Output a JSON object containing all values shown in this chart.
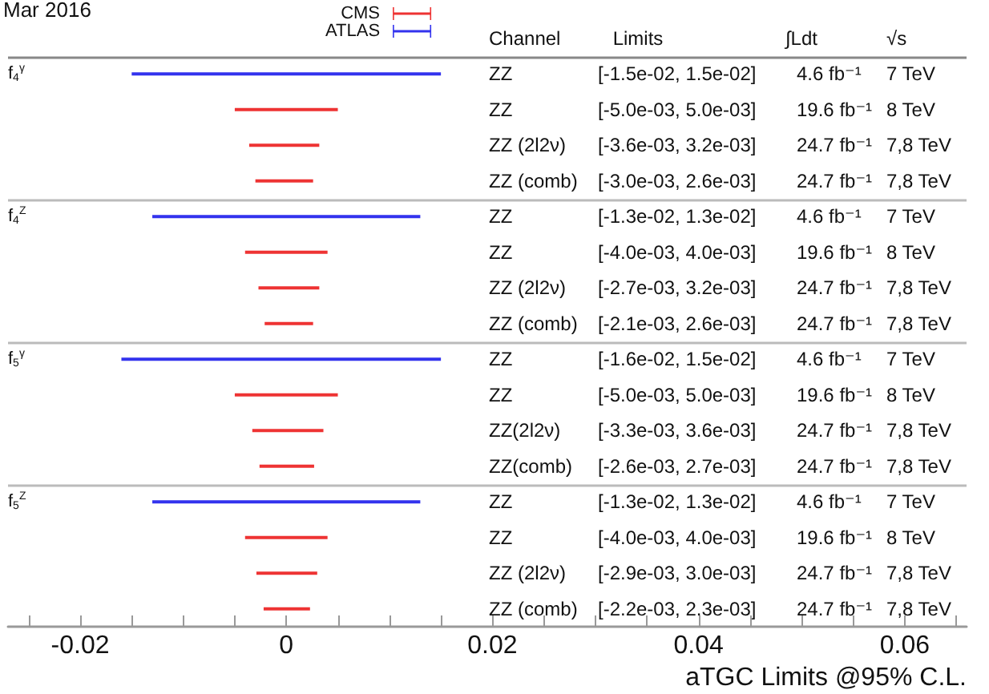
{
  "chart_data": {
    "type": "bar",
    "orientation": "horizontal",
    "categories": [
      "f$_{4}$$^{γ}$",
      null,
      null,
      null,
      "f$_{4}$$^{Z}$",
      null,
      null,
      null,
      "f$_{5}$$^{γ}$",
      null,
      null,
      null,
      "f$_{5}$$^{Z}$",
      null,
      null,
      null
    ],
    "series": [
      {
        "name": "CMS",
        "color": "#ee3333",
        "base": [
          null,
          -0.005,
          -0.0036,
          -0.003,
          null,
          -0.004,
          -0.0027,
          -0.0021,
          null,
          -0.005,
          -0.0033,
          -0.0026,
          null,
          -0.004,
          -0.0029,
          -0.0022
        ],
        "values": [
          null,
          0.01,
          0.0068,
          0.0056,
          null,
          0.008,
          0.0059,
          0.0047,
          null,
          0.01,
          0.0069,
          0.0053,
          null,
          0.008,
          0.0059,
          0.0045
        ]
      },
      {
        "name": "ATLAS",
        "color": "#3333ee",
        "base": [
          -0.015,
          null,
          null,
          null,
          -0.013,
          null,
          null,
          null,
          -0.016,
          null,
          null,
          null,
          -0.013,
          null,
          null,
          null
        ],
        "values": [
          0.03,
          null,
          null,
          null,
          0.026,
          null,
          null,
          null,
          0.031,
          null,
          null,
          null,
          0.026,
          null,
          null,
          null
        ]
      }
    ],
    "xlim": [
      -0.027,
      0.066
    ],
    "xticks": [
      {
        "value": -0.025,
        "label": null
      },
      -0.02,
      {
        "value": -0.015,
        "label": null
      },
      {
        "value": -0.01,
        "label": null
      },
      {
        "value": -0.005,
        "label": null
      },
      0,
      {
        "value": 0.005,
        "label": null
      },
      {
        "value": 0.01,
        "label": null
      },
      {
        "value": 0.015,
        "label": null
      },
      0.02,
      {
        "value": 0.025,
        "label": null
      },
      {
        "value": 0.03,
        "label": null
      },
      {
        "value": 0.035,
        "label": null
      },
      0.04,
      {
        "value": 0.045,
        "label": null
      },
      {
        "value": 0.05,
        "label": null
      },
      {
        "value": 0.055,
        "label": null
      },
      0.06,
      {
        "value": 0.065,
        "label": null
      }
    ],
    "annotations": [
      "Mar 2016",
      "Channel",
      "Limits",
      "∫Ldt",
      "√s",
      "ZZ",
      "[-1.5e-02, 1.5e-02]",
      "4.6 fb⁻¹",
      "7 TeV",
      "ZZ",
      "[-5.0e-03, 5.0e-03]",
      "19.6 fb⁻¹",
      "8 TeV",
      "ZZ (2l2ν)",
      "[-3.6e-03, 3.2e-03]",
      "24.7 fb⁻¹",
      "7,8 TeV",
      "ZZ (comb)",
      "[-3.0e-03, 2.6e-03]",
      "24.7 fb⁻¹",
      "7,8 TeV",
      "ZZ",
      "[-1.3e-02, 1.3e-02]",
      "4.6 fb⁻¹",
      "7 TeV",
      "ZZ",
      "[-4.0e-03, 4.0e-03]",
      "19.6 fb⁻¹",
      "8 TeV",
      "ZZ (2l2ν)",
      "[-2.7e-03, 3.2e-03]",
      "24.7 fb⁻¹",
      "7,8 TeV",
      "ZZ (comb)",
      "[-2.1e-03, 2.6e-03]",
      "24.7 fb⁻¹",
      "7,8 TeV",
      "ZZ",
      "[-1.6e-02, 1.5e-02]",
      "4.6 fb⁻¹",
      "7 TeV",
      "ZZ",
      "[-5.0e-03, 5.0e-03]",
      "19.6 fb⁻¹",
      "8 TeV",
      "ZZ(2l2ν)",
      "[-3.3e-03, 3.6e-03]",
      "24.7 fb⁻¹",
      "7,8 TeV",
      "ZZ(comb)",
      "[-2.6e-03, 2.7e-03]",
      "24.7 fb⁻¹",
      "7,8 TeV",
      "ZZ",
      "[-1.3e-02, 1.3e-02]",
      "4.6 fb⁻¹",
      "7 TeV",
      "ZZ",
      "[-4.0e-03, 4.0e-03]",
      "19.6 fb⁻¹",
      "8 TeV",
      "ZZ (2l2ν)",
      "[-2.9e-03, 3.0e-03]",
      "24.7 fb⁻¹",
      "7,8 TeV",
      "ZZ (comb)",
      "[-2.2e-03, 2.3e-03]",
      "24.7 fb⁻¹",
      "7,8 TeV",
      "aTGC Limits @95% C.L."
    ],
    "legend": "top",
    "grid": false
  }
}
